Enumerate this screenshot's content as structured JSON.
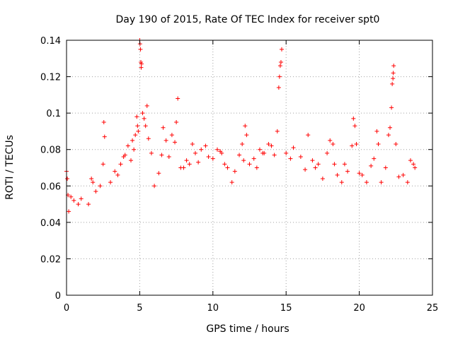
{
  "chart_data": {
    "type": "scatter",
    "title": "Day 190 of 2015, Rate Of TEC Index for receiver spt0",
    "xlabel": "GPS time / hours",
    "ylabel": "ROTI / TECUs",
    "xlim": [
      0,
      25
    ],
    "ylim": [
      0,
      0.14
    ],
    "x_ticks": [
      0,
      5,
      10,
      15,
      20,
      25
    ],
    "y_ticks": [
      0,
      0.02,
      0.04,
      0.06,
      0.08,
      0.1,
      0.12,
      0.14
    ],
    "x_tick_labels": [
      "0",
      "5",
      "10",
      "15",
      "20",
      "25"
    ],
    "y_tick_labels": [
      "0",
      "0.02",
      "0.04",
      "0.06",
      "0.08",
      "0.1",
      "0.12",
      "0.14"
    ],
    "grid": true,
    "marker": "+",
    "color": "#ff0000",
    "series": [
      {
        "name": "ROTI",
        "points": [
          [
            0.0,
            0.068
          ],
          [
            0.05,
            0.064
          ],
          [
            0.1,
            0.055
          ],
          [
            0.15,
            0.046
          ],
          [
            0.3,
            0.054
          ],
          [
            0.5,
            0.052
          ],
          [
            0.8,
            0.05
          ],
          [
            1.0,
            0.053
          ],
          [
            1.5,
            0.05
          ],
          [
            1.7,
            0.064
          ],
          [
            1.8,
            0.062
          ],
          [
            2.0,
            0.057
          ],
          [
            2.3,
            0.06
          ],
          [
            2.5,
            0.072
          ],
          [
            2.55,
            0.095
          ],
          [
            2.6,
            0.087
          ],
          [
            3.0,
            0.062
          ],
          [
            3.3,
            0.068
          ],
          [
            3.5,
            0.066
          ],
          [
            3.7,
            0.072
          ],
          [
            3.9,
            0.076
          ],
          [
            4.0,
            0.077
          ],
          [
            4.2,
            0.082
          ],
          [
            4.4,
            0.074
          ],
          [
            4.5,
            0.085
          ],
          [
            4.6,
            0.08
          ],
          [
            4.7,
            0.088
          ],
          [
            4.8,
            0.098
          ],
          [
            4.85,
            0.093
          ],
          [
            4.9,
            0.09
          ],
          [
            5.0,
            0.14
          ],
          [
            5.02,
            0.138
          ],
          [
            5.05,
            0.135
          ],
          [
            5.08,
            0.128
          ],
          [
            5.1,
            0.125
          ],
          [
            5.12,
            0.127
          ],
          [
            5.2,
            0.1
          ],
          [
            5.3,
            0.097
          ],
          [
            5.4,
            0.093
          ],
          [
            5.5,
            0.104
          ],
          [
            5.6,
            0.086
          ],
          [
            5.8,
            0.078
          ],
          [
            6.0,
            0.06
          ],
          [
            6.3,
            0.067
          ],
          [
            6.5,
            0.077
          ],
          [
            6.6,
            0.092
          ],
          [
            6.8,
            0.085
          ],
          [
            7.0,
            0.076
          ],
          [
            7.2,
            0.088
          ],
          [
            7.4,
            0.084
          ],
          [
            7.5,
            0.095
          ],
          [
            7.6,
            0.108
          ],
          [
            7.8,
            0.07
          ],
          [
            8.0,
            0.07
          ],
          [
            8.2,
            0.074
          ],
          [
            8.4,
            0.072
          ],
          [
            8.6,
            0.083
          ],
          [
            8.8,
            0.078
          ],
          [
            9.0,
            0.073
          ],
          [
            9.2,
            0.08
          ],
          [
            9.5,
            0.082
          ],
          [
            9.7,
            0.076
          ],
          [
            10.0,
            0.075
          ],
          [
            10.3,
            0.08
          ],
          [
            10.5,
            0.079
          ],
          [
            10.6,
            0.078
          ],
          [
            10.8,
            0.072
          ],
          [
            11.0,
            0.07
          ],
          [
            11.3,
            0.062
          ],
          [
            11.5,
            0.068
          ],
          [
            11.8,
            0.077
          ],
          [
            12.0,
            0.083
          ],
          [
            12.1,
            0.074
          ],
          [
            12.2,
            0.093
          ],
          [
            12.3,
            0.088
          ],
          [
            12.5,
            0.072
          ],
          [
            12.8,
            0.075
          ],
          [
            13.0,
            0.07
          ],
          [
            13.2,
            0.08
          ],
          [
            13.4,
            0.078
          ],
          [
            13.5,
            0.078
          ],
          [
            13.8,
            0.083
          ],
          [
            14.0,
            0.082
          ],
          [
            14.2,
            0.077
          ],
          [
            14.4,
            0.09
          ],
          [
            14.5,
            0.114
          ],
          [
            14.55,
            0.12
          ],
          [
            14.6,
            0.126
          ],
          [
            14.65,
            0.128
          ],
          [
            14.7,
            0.135
          ],
          [
            15.0,
            0.078
          ],
          [
            15.3,
            0.075
          ],
          [
            15.5,
            0.081
          ],
          [
            16.0,
            0.076
          ],
          [
            16.3,
            0.069
          ],
          [
            16.5,
            0.088
          ],
          [
            16.8,
            0.074
          ],
          [
            17.0,
            0.07
          ],
          [
            17.2,
            0.072
          ],
          [
            17.5,
            0.064
          ],
          [
            17.8,
            0.078
          ],
          [
            18.0,
            0.085
          ],
          [
            18.2,
            0.083
          ],
          [
            18.3,
            0.072
          ],
          [
            18.5,
            0.066
          ],
          [
            18.8,
            0.062
          ],
          [
            19.0,
            0.072
          ],
          [
            19.2,
            0.068
          ],
          [
            19.5,
            0.082
          ],
          [
            19.6,
            0.097
          ],
          [
            19.7,
            0.093
          ],
          [
            19.8,
            0.083
          ],
          [
            20.0,
            0.067
          ],
          [
            20.2,
            0.066
          ],
          [
            20.5,
            0.062
          ],
          [
            20.8,
            0.071
          ],
          [
            21.0,
            0.075
          ],
          [
            21.2,
            0.09
          ],
          [
            21.3,
            0.083
          ],
          [
            21.5,
            0.062
          ],
          [
            21.8,
            0.07
          ],
          [
            22.0,
            0.088
          ],
          [
            22.1,
            0.092
          ],
          [
            22.2,
            0.103
          ],
          [
            22.25,
            0.116
          ],
          [
            22.3,
            0.119
          ],
          [
            22.32,
            0.122
          ],
          [
            22.35,
            0.126
          ],
          [
            22.5,
            0.083
          ],
          [
            22.7,
            0.065
          ],
          [
            23.0,
            0.066
          ],
          [
            23.3,
            0.062
          ],
          [
            23.5,
            0.074
          ],
          [
            23.7,
            0.072
          ],
          [
            23.8,
            0.07
          ]
        ]
      }
    ]
  }
}
